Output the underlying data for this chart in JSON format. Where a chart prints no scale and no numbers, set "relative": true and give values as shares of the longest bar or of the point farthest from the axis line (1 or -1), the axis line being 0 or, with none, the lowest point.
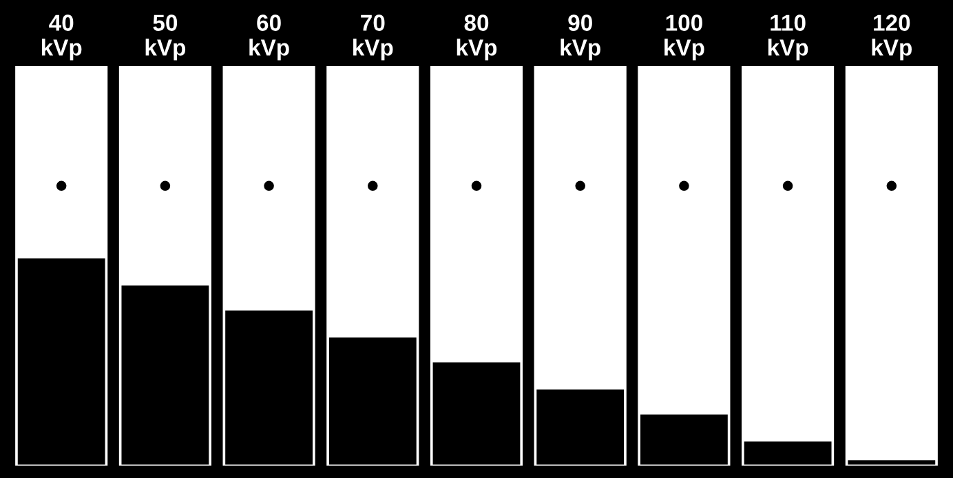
{
  "chart_data": {
    "type": "bar",
    "relative": true,
    "categories": [
      "40\nkVp",
      "50\nkVp",
      "60\nkVp",
      "70\nkVp",
      "80\nkVp",
      "90\nkVp",
      "100\nkVp",
      "110\nkVp",
      "120\nkVp"
    ],
    "values": [
      1,
      0.87,
      0.75,
      0.62,
      0.5,
      0.37,
      0.25,
      0.12,
      0.03
    ],
    "color": "#000000",
    "grid": false,
    "legend": false
  }
}
